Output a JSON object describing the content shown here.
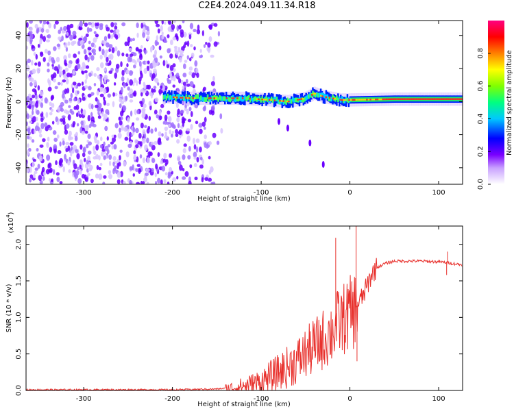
{
  "title": "C2E4.2024.049.11.34.R18",
  "chart_data": [
    {
      "type": "heatmap",
      "title": "C2E4.2024.049.11.34.R18",
      "xlabel": "Height of straight line (km)",
      "ylabel": "Frequency (Hz)",
      "xlim": [
        -365,
        127
      ],
      "ylim": [
        -50,
        49
      ],
      "x_ticks": [
        "-300",
        "-200",
        "-100",
        "0",
        "100"
      ],
      "y_ticks": [
        "-40",
        "-20",
        "0",
        "20",
        "40"
      ],
      "colorbar": {
        "label": "Normalized spectral amplitude",
        "range": [
          0.0,
          1.0
        ],
        "ticks": [
          "0.0",
          "0.2",
          "0.4",
          "0.6",
          "0.8"
        ],
        "colors": [
          "#ffffff",
          "#c8a0ff",
          "#7a00ff",
          "#0000ff",
          "#00c8ff",
          "#00ff80",
          "#80ff00",
          "#ffff00",
          "#ff8000",
          "#ff0000",
          "#ff0080"
        ]
      },
      "signal_band": {
        "description_free": true,
        "x": [
          -210,
          -180,
          -150,
          -120,
          -90,
          -70,
          -50,
          -40,
          -30,
          -20,
          -10,
          0,
          50,
          100,
          127
        ],
        "center_hz": [
          3,
          2,
          2,
          2,
          1,
          0,
          2,
          5,
          3,
          2,
          1,
          1,
          1.5,
          1.5,
          1.5
        ]
      },
      "noise_region_x": [
        -365,
        -170
      ]
    },
    {
      "type": "line",
      "xlabel": "Height of straight line (km)",
      "ylabel": "SNR (10 * v/v)",
      "y_multiplier": "(x10",
      "y_multiplier_exp": "4",
      "y_multiplier_close": ")",
      "xlim": [
        -365,
        127
      ],
      "ylim": [
        0.0,
        2.25
      ],
      "x_ticks": [
        "-300",
        "-200",
        "-100",
        "0",
        "100"
      ],
      "y_ticks": [
        "0.0",
        "0.5",
        "1.0",
        "1.5",
        "2.0"
      ],
      "series": [
        {
          "color": "#e8302c",
          "x": [
            -365,
            -300,
            -250,
            -200,
            -150,
            -130,
            -110,
            -100,
            -90,
            -80,
            -70,
            -60,
            -50,
            -40,
            -30,
            -20,
            -15,
            -10,
            -5,
            0,
            5,
            10,
            15,
            20,
            25,
            30,
            40,
            50,
            60,
            80,
            100,
            110,
            120,
            127
          ],
          "y": [
            0.01,
            0.01,
            0.01,
            0.01,
            0.02,
            0.04,
            0.08,
            0.12,
            0.18,
            0.25,
            0.32,
            0.4,
            0.5,
            0.6,
            0.7,
            0.8,
            0.9,
            0.95,
            1.0,
            1.05,
            1.1,
            1.2,
            1.3,
            1.45,
            1.6,
            1.68,
            1.74,
            1.77,
            1.77,
            1.77,
            1.76,
            1.75,
            1.73,
            1.72
          ]
        }
      ],
      "spikes": [
        {
          "x": -16,
          "y": 2.09
        },
        {
          "x": 7,
          "y": 2.25
        },
        {
          "x": 8,
          "y": 0.4
        },
        {
          "x": 110,
          "y": 1.9
        },
        {
          "x": 109,
          "y": 1.58
        }
      ]
    }
  ]
}
